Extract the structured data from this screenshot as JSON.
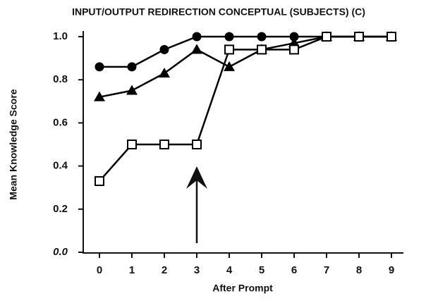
{
  "chart_data": {
    "type": "line",
    "title": "INPUT/OUTPUT REDIRECTION CONCEPTUAL (SUBJECTS) (C)",
    "x_label": "After Prompt",
    "y_label": "Mean Knowledge Score",
    "x": [
      0,
      1,
      2,
      3,
      4,
      5,
      6,
      7,
      8,
      9
    ],
    "series": [
      {
        "color": "#000000",
        "marker": "circle",
        "values": [
          0.86,
          0.86,
          0.94,
          1.0,
          1.0,
          1.0,
          1.0,
          1.0,
          1.0,
          1.0
        ]
      },
      {
        "color": "#000000",
        "marker": "triangle",
        "values": [
          0.72,
          0.75,
          0.83,
          0.94,
          0.86,
          0.94,
          0.97,
          1.0,
          1.0,
          1.0
        ]
      },
      {
        "color": "#000000",
        "marker": "square-open",
        "values": [
          0.33,
          0.5,
          0.5,
          0.5,
          0.94,
          0.94,
          0.94,
          1.0,
          1.0,
          1.0
        ]
      }
    ],
    "xlim": [
      -0.5,
      9.5
    ],
    "xticks": [
      0,
      1,
      2,
      3,
      4,
      5,
      6,
      7,
      8,
      9
    ],
    "ylim": [
      0,
      1
    ],
    "yticks": [
      {
        "value": 0,
        "label": "0.0"
      },
      0.2,
      0.4,
      0.6,
      0.8,
      {
        "value": 1,
        "label": "1.0"
      }
    ],
    "grid": false
  }
}
